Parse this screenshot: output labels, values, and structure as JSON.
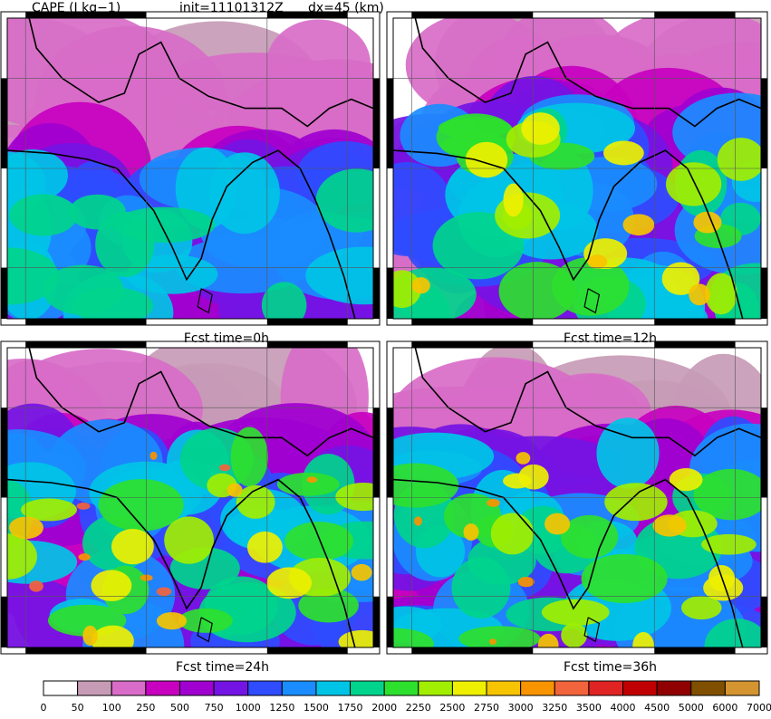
{
  "header": {
    "field": "CAPE (J kg−1)",
    "init": "init=11101312Z",
    "dx": "dx=45 (km)"
  },
  "panels": [
    {
      "label": "Fcst time=0h"
    },
    {
      "label": "Fcst time=12h"
    },
    {
      "label": "Fcst time=24h"
    },
    {
      "label": "Fcst time=36h"
    }
  ],
  "colorbar": {
    "levels": [
      0,
      50,
      100,
      250,
      500,
      750,
      1000,
      1250,
      1500,
      1750,
      2000,
      2250,
      2500,
      2750,
      3000,
      3250,
      3500,
      4000,
      4500,
      5000,
      6000,
      7000
    ],
    "colors": [
      "#ffffff",
      "#c79bb6",
      "#d86cc8",
      "#c800c0",
      "#a000d0",
      "#7414e4",
      "#2f4cff",
      "#1a8cff",
      "#00c4e6",
      "#00d48c",
      "#2ee02e",
      "#a2ee00",
      "#eef000",
      "#f6c400",
      "#f89400",
      "#f2643c",
      "#e02424",
      "#c00000",
      "#900000",
      "#805000",
      "#d49430"
    ]
  }
}
